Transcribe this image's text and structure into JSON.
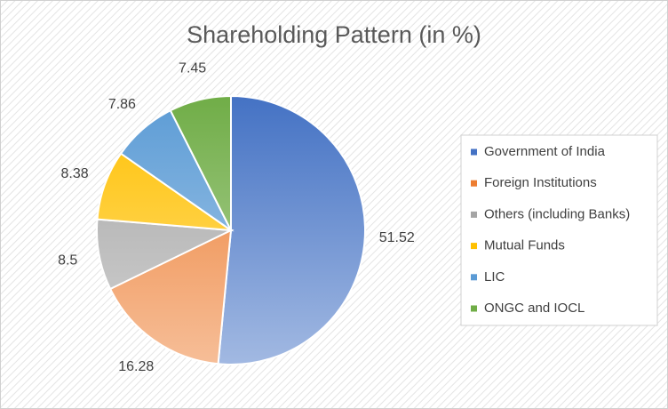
{
  "chart_data": {
    "type": "pie",
    "title": "Shareholding Pattern (in %)",
    "categories": [
      "Government of India",
      "Foreign Institutions",
      "Others (including Banks)",
      "Mutual Funds",
      "LIC",
      "ONGC and IOCL"
    ],
    "values": [
      51.52,
      16.28,
      8.5,
      8.38,
      7.86,
      7.45
    ],
    "colors": [
      "#4472c4",
      "#ed7d31",
      "#a5a5a5",
      "#ffc000",
      "#5b9bd5",
      "#70ad47"
    ],
    "legend": "right"
  }
}
